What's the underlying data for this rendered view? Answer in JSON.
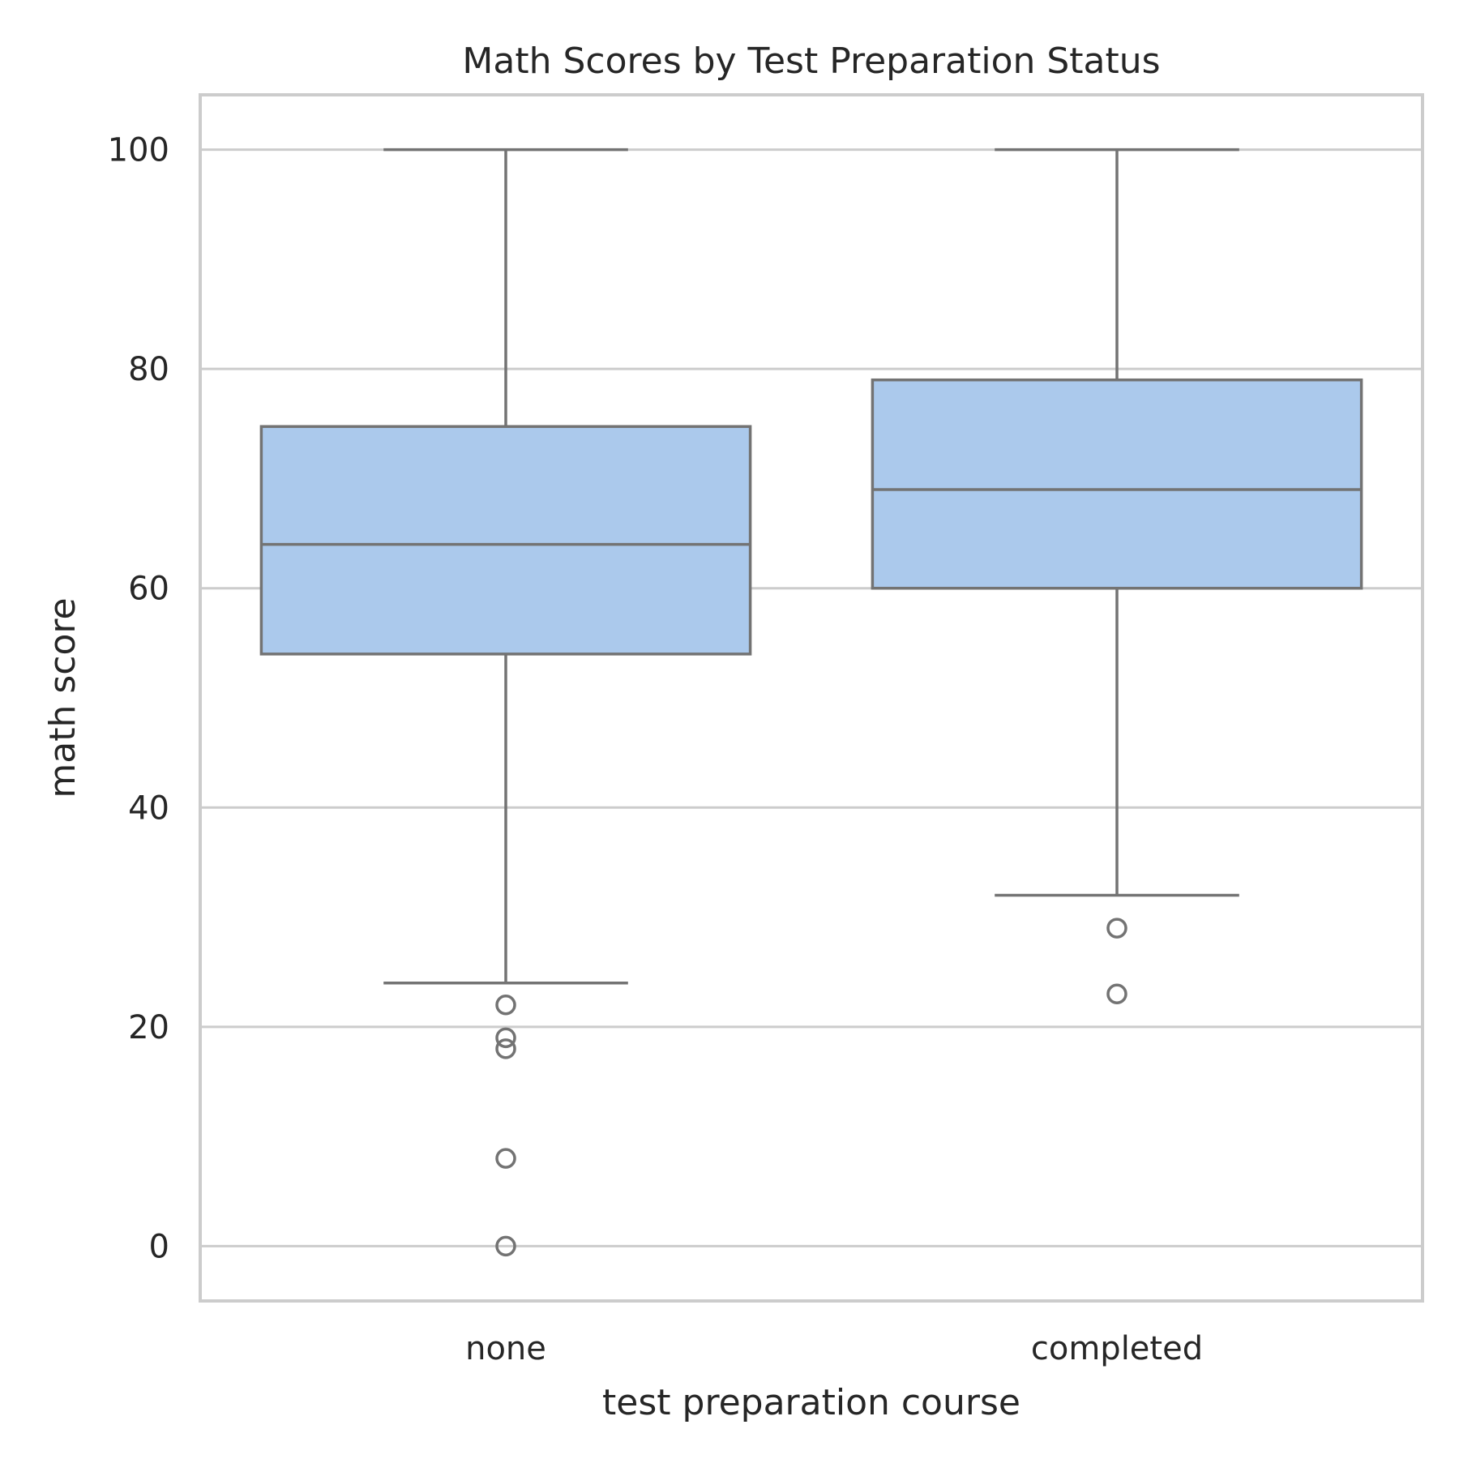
{
  "chart_data": {
    "type": "box",
    "title": "Math Scores by Test Preparation Status",
    "xlabel": "test preparation course",
    "ylabel": "math score",
    "ylim": [
      -5,
      105
    ],
    "yticks": [
      0,
      20,
      40,
      60,
      80,
      100
    ],
    "grid": true,
    "categories": [
      "none",
      "completed"
    ],
    "boxes": [
      {
        "category": "none",
        "whisker_low": 24,
        "q1": 54,
        "median": 64,
        "q3": 74.75,
        "whisker_high": 100,
        "outliers": [
          22,
          19,
          18,
          8,
          0
        ]
      },
      {
        "category": "completed",
        "whisker_low": 32,
        "q1": 60,
        "median": 69,
        "q3": 79,
        "whisker_high": 100,
        "outliers": [
          29,
          23
        ]
      }
    ],
    "colors": {
      "box_fill": "#abc9ec",
      "line": "#737373",
      "grid": "#cccccc",
      "text": "#262626"
    }
  }
}
